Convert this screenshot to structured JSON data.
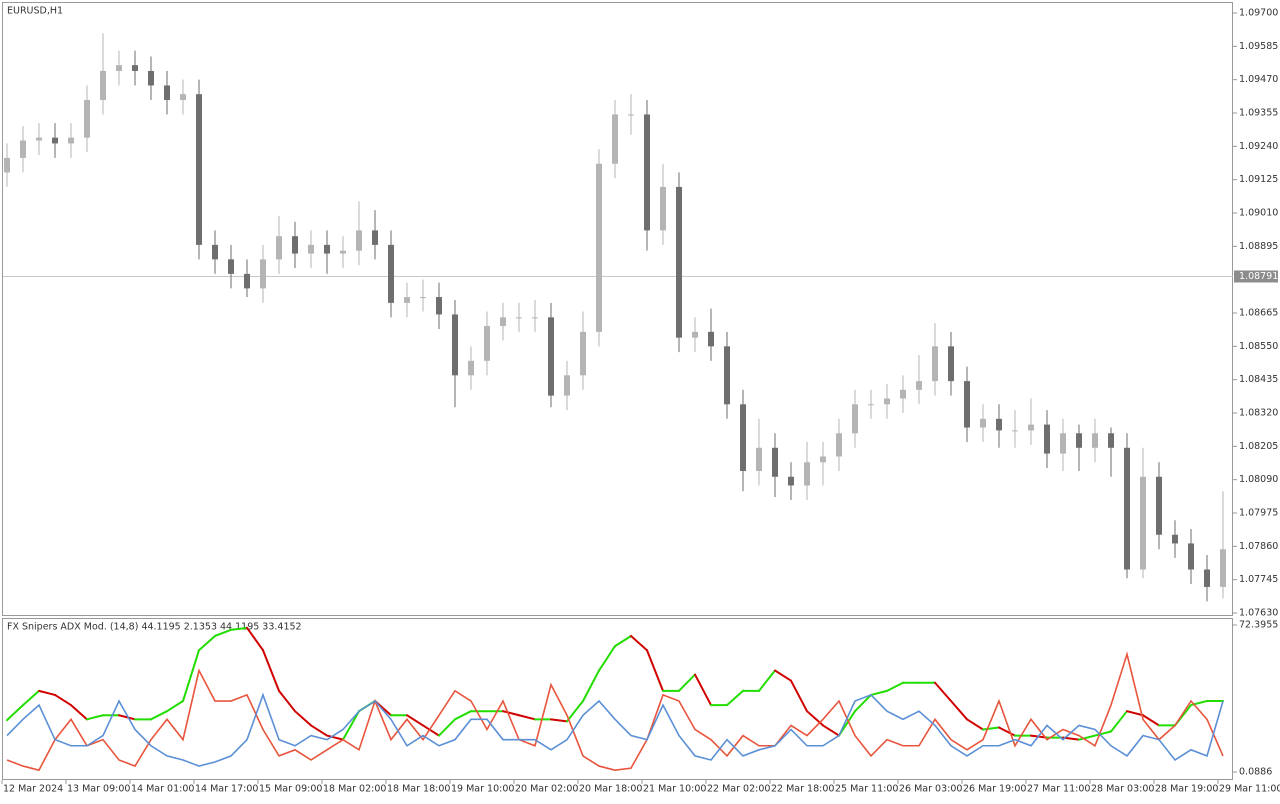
{
  "chart_data": [
    {
      "type": "candlestick",
      "title": "EURUSD,H1",
      "categories": [
        "12 Mar 2024",
        null,
        null,
        null,
        "13 Mar 09:00",
        null,
        null,
        null,
        "14 Mar 01:00",
        null,
        null,
        null,
        "14 Mar 17:00",
        null,
        null,
        null,
        "15 Mar 09:00",
        null,
        null,
        null,
        "18 Mar 02:00",
        null,
        null,
        null,
        "18 Mar 18:00",
        null,
        null,
        null,
        "19 Mar 10:00",
        null,
        null,
        null,
        "20 Mar 02:00",
        null,
        null,
        null,
        "20 Mar 18:00",
        null,
        null,
        null,
        "21 Mar 10:00",
        null,
        null,
        null,
        "22 Mar 02:00",
        null,
        null,
        null,
        "22 Mar 18:00",
        null,
        null,
        null,
        "25 Mar 11:00",
        null,
        null,
        null,
        "26 Mar 03:00",
        null,
        null,
        null,
        "26 Mar 19:00",
        null,
        null,
        null,
        "27 Mar 11:00",
        null,
        null,
        null,
        "28 Mar 03:00",
        null,
        null,
        null,
        "28 Mar 19:00",
        null,
        null,
        null,
        "29 Mar 11:00"
      ],
      "open": [
        1.0915,
        1.092,
        1.0926,
        1.0927,
        1.0925,
        1.0927,
        1.094,
        1.095,
        1.0952,
        1.095,
        1.0945,
        1.094,
        1.0942,
        1.089,
        1.0885,
        1.088,
        1.0875,
        1.0885,
        1.0893,
        1.0887,
        1.089,
        1.0887,
        1.0888,
        1.0895,
        1.089,
        1.087,
        1.0872,
        1.0872,
        1.0866,
        1.0845,
        1.085,
        1.0862,
        1.0865,
        1.0865,
        1.0865,
        1.0838,
        1.0845,
        1.086,
        1.0918,
        1.0935,
        1.0935,
        1.0895,
        1.091,
        1.0858,
        1.086,
        1.0855,
        1.0835,
        1.0812,
        1.082,
        1.081,
        1.0807,
        1.0815,
        1.0817,
        1.0825,
        1.0835,
        1.0835,
        1.0837,
        1.084,
        1.0843,
        1.0855,
        1.0843,
        1.0827,
        1.083,
        1.0826,
        1.0826,
        1.0828,
        1.0818,
        1.0825,
        1.082,
        1.0825,
        1.082,
        1.0778,
        1.081,
        1.079,
        1.0787,
        1.0778,
        1.0772
      ],
      "high": [
        1.0925,
        1.0931,
        1.0932,
        1.0932,
        1.0932,
        1.0945,
        1.0963,
        1.0957,
        1.0957,
        1.0955,
        1.095,
        1.0947,
        1.0947,
        1.0895,
        1.089,
        1.0885,
        1.089,
        1.09,
        1.0898,
        1.0895,
        1.0895,
        1.0893,
        1.0905,
        1.0902,
        1.0895,
        1.0877,
        1.0878,
        1.0877,
        1.0871,
        1.0855,
        1.0867,
        1.087,
        1.087,
        1.0871,
        1.087,
        1.085,
        1.0867,
        1.0923,
        1.094,
        1.0942,
        1.094,
        1.0918,
        1.0915,
        1.0865,
        1.0868,
        1.086,
        1.084,
        1.083,
        1.0825,
        1.0815,
        1.0822,
        1.0822,
        1.083,
        1.084,
        1.084,
        1.0842,
        1.0845,
        1.0852,
        1.0863,
        1.086,
        1.0848,
        1.0835,
        1.0835,
        1.0833,
        1.0837,
        1.0833,
        1.083,
        1.0828,
        1.083,
        1.0827,
        1.0825,
        1.082,
        1.0815,
        1.0795,
        1.0792,
        1.0783,
        1.0805
      ],
      "low": [
        1.091,
        1.0915,
        1.0921,
        1.092,
        1.092,
        1.0922,
        1.0935,
        1.0945,
        1.0945,
        1.094,
        1.0935,
        1.0935,
        1.0885,
        1.088,
        1.0875,
        1.0872,
        1.087,
        1.088,
        1.0882,
        1.0882,
        1.088,
        1.0882,
        1.0883,
        1.0885,
        1.0865,
        1.0865,
        1.0867,
        1.0861,
        1.0834,
        1.084,
        1.0845,
        1.0857,
        1.086,
        1.086,
        1.0834,
        1.0833,
        1.084,
        1.0855,
        1.0913,
        1.0928,
        1.0888,
        1.089,
        1.0853,
        1.0853,
        1.085,
        1.083,
        1.0805,
        1.0807,
        1.0803,
        1.0802,
        1.0802,
        1.0807,
        1.0812,
        1.082,
        1.083,
        1.083,
        1.0832,
        1.0835,
        1.0838,
        1.0838,
        1.0822,
        1.0822,
        1.082,
        1.082,
        1.0821,
        1.0813,
        1.0812,
        1.0812,
        1.0815,
        1.081,
        1.0775,
        1.0775,
        1.0785,
        1.0782,
        1.0773,
        1.0767,
        1.0768
      ],
      "close": [
        1.092,
        1.0926,
        1.0927,
        1.0925,
        1.0927,
        1.094,
        1.095,
        1.0952,
        1.095,
        1.0945,
        1.094,
        1.0942,
        1.089,
        1.0885,
        1.088,
        1.0875,
        1.0885,
        1.0893,
        1.0887,
        1.089,
        1.0887,
        1.0888,
        1.0895,
        1.089,
        1.087,
        1.0872,
        1.0872,
        1.0866,
        1.0845,
        1.085,
        1.0862,
        1.0865,
        1.0865,
        1.0865,
        1.0838,
        1.0845,
        1.086,
        1.0918,
        1.0935,
        1.0935,
        1.0895,
        1.091,
        1.0858,
        1.086,
        1.0855,
        1.0835,
        1.0812,
        1.082,
        1.081,
        1.0807,
        1.0815,
        1.0817,
        1.0825,
        1.0835,
        1.0835,
        1.0837,
        1.084,
        1.0843,
        1.0855,
        1.0843,
        1.0827,
        1.083,
        1.0826,
        1.0826,
        1.0828,
        1.0818,
        1.0825,
        1.082,
        1.0825,
        1.082,
        1.0778,
        1.081,
        1.079,
        1.0787,
        1.0778,
        1.0772,
        1.0785
      ],
      "up_color": "#b4b4b4",
      "down_color": "#6e6e6e",
      "last_price": 1.08791,
      "last_price_color": "#8c8c8c",
      "ylim": [
        1.0763,
        1.097
      ],
      "yticks": [
        {
          "value": 1.097,
          "label": "1.09700"
        },
        1.09585,
        {
          "value": 1.0947,
          "label": "1.09470"
        },
        1.09355,
        {
          "value": 1.0924,
          "label": "1.09240"
        },
        1.09125,
        {
          "value": 1.0901,
          "label": "1.09010"
        },
        1.08895,
        1.08665,
        {
          "value": 1.0855,
          "label": "1.08550"
        },
        1.08435,
        {
          "value": 1.0832,
          "label": "1.08320"
        },
        1.08205,
        {
          "value": 1.0809,
          "label": "1.08090"
        },
        1.07975,
        {
          "value": 1.0786,
          "label": "1.07860"
        },
        1.07745,
        {
          "value": 1.0763,
          "label": "1.07630"
        }
      ]
    },
    {
      "type": "line",
      "title": "FX Snipers ADX Mod. (14,8) 44.1195 2.1353 44.1195 33.4152",
      "ylim": [
        0.0886,
        72.3955
      ],
      "yticks": [
        72.3955,
        0.0886
      ],
      "series": [
        {
          "rising_color": "#22dd00",
          "falling_color": "#d00000",
          "values": [
            25.6,
            33,
            40,
            38,
            33,
            26,
            28,
            28,
            26,
            26,
            30,
            35,
            60,
            67,
            70,
            71,
            60,
            40,
            30,
            23,
            18,
            16,
            30,
            35,
            28,
            28,
            23,
            18,
            26,
            30,
            30,
            30,
            28,
            26,
            26,
            25,
            35,
            50,
            62,
            67,
            60,
            40,
            40,
            48,
            33,
            33,
            40,
            40,
            50,
            45,
            30,
            23,
            18,
            30,
            38,
            40,
            44,
            44,
            44,
            35,
            26,
            21,
            22,
            18,
            18,
            17,
            17,
            16,
            18,
            20,
            30,
            28,
            23,
            23,
            33,
            35,
            35
          ]
        },
        {
          "color": "#e8553c",
          "values": [
            6,
            3,
            1,
            16,
            26,
            13,
            16,
            6,
            3,
            16,
            26,
            16,
            50,
            35,
            35,
            38,
            21,
            8,
            11,
            6,
            11,
            16,
            11,
            35,
            16,
            26,
            16,
            28,
            40,
            35,
            21,
            35,
            16,
            13,
            43,
            28,
            8,
            3,
            1,
            2,
            16,
            38,
            35,
            21,
            16,
            8,
            18,
            13,
            13,
            23,
            18,
            26,
            35,
            18,
            8,
            16,
            13,
            13,
            26,
            16,
            11,
            16,
            35,
            13,
            26,
            16,
            21,
            18,
            13,
            33,
            58,
            26,
            16,
            23,
            35,
            26,
            8
          ]
        },
        {
          "color": "#5b8fd6",
          "values": [
            18,
            26,
            33,
            16,
            13,
            13,
            18,
            35,
            21,
            13,
            8,
            6,
            3,
            5,
            8,
            16,
            38,
            16,
            13,
            18,
            16,
            21,
            30,
            35,
            26,
            13,
            18,
            13,
            16,
            26,
            26,
            16,
            16,
            16,
            11,
            16,
            28,
            35,
            26,
            18,
            16,
            33,
            18,
            8,
            6,
            16,
            8,
            11,
            13,
            21,
            13,
            13,
            18,
            35,
            38,
            30,
            26,
            30,
            23,
            13,
            8,
            13,
            13,
            16,
            13,
            23,
            16,
            23,
            21,
            13,
            8,
            18,
            16,
            6,
            11,
            8,
            35
          ]
        }
      ]
    }
  ]
}
